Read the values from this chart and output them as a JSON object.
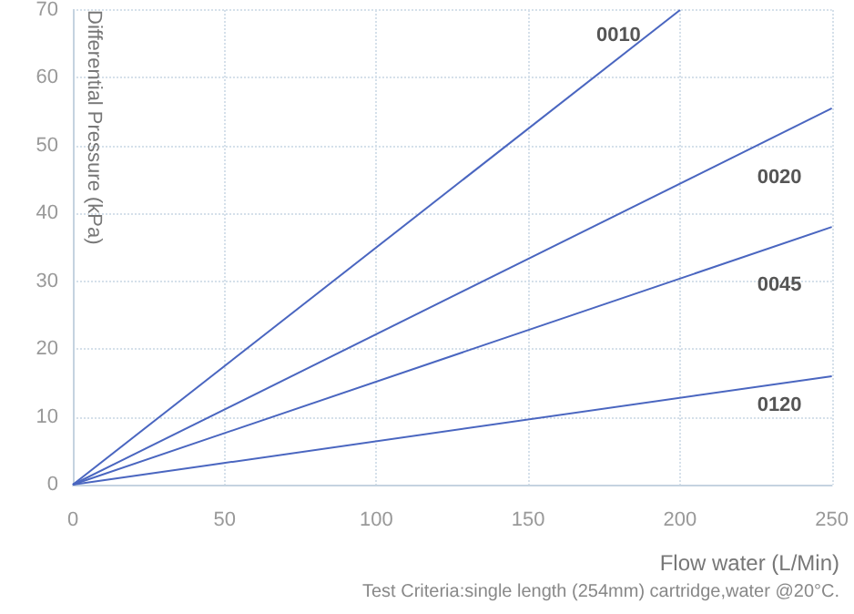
{
  "chart_data": {
    "type": "line",
    "xlabel": "Flow water (L/Min)",
    "ylabel": "Differential Pressure (kPa)",
    "annotations": [
      "Test Criteria:single length (254mm) cartridge,water @20°C."
    ],
    "series": [
      {
        "name": "0010",
        "color": "#4a66c0",
        "x": [
          0,
          200
        ],
        "values": [
          0,
          70
        ]
      },
      {
        "name": "0020",
        "color": "#4a66c0",
        "x": [
          0,
          250
        ],
        "values": [
          0,
          55.5
        ]
      },
      {
        "name": "0045",
        "color": "#4a66c0",
        "x": [
          0,
          250
        ],
        "values": [
          0,
          38
        ]
      },
      {
        "name": "0120",
        "color": "#4a66c0",
        "x": [
          0,
          250
        ],
        "values": [
          0,
          16
        ]
      }
    ],
    "xlim": [
      0,
      250
    ],
    "xticks": [
      0,
      50,
      100,
      150,
      200,
      250
    ],
    "ylim": [
      0,
      70
    ],
    "yticks": [
      0,
      10,
      20,
      30,
      40,
      50,
      60,
      70
    ],
    "grid": true,
    "legend": false,
    "marker": "none",
    "line_style": "solid"
  }
}
